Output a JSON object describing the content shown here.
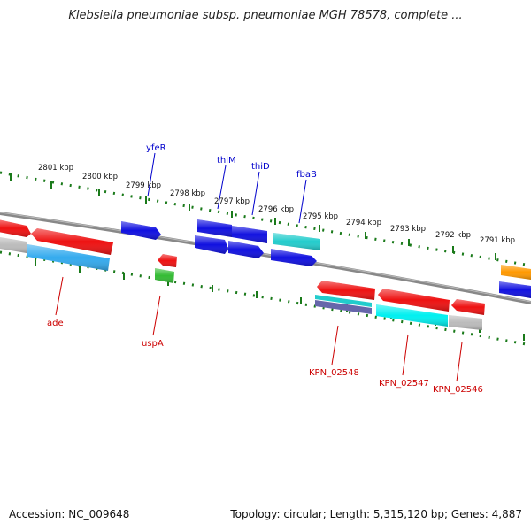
{
  "title": "Klebsiella pneumoniae subsp. pneumoniae MGH 78578, complete ...",
  "footer": {
    "accession": "Accession: NC_009648",
    "summary": "Topology: circular; Length: 5,315,120 bp; Genes: 4,887"
  },
  "ticks": [
    {
      "label": "2801 kbp"
    },
    {
      "label": "2800 kbp"
    },
    {
      "label": "2799 kbp"
    },
    {
      "label": "2798 kbp"
    },
    {
      "label": "2797 kbp"
    },
    {
      "label": "2796 kbp"
    },
    {
      "label": "2795 kbp"
    },
    {
      "label": "2794 kbp"
    },
    {
      "label": "2793 kbp"
    },
    {
      "label": "2792 kbp"
    },
    {
      "label": "2791 kbp"
    }
  ],
  "gene_labels": {
    "top": [
      {
        "name": "yfeR",
        "color": "#0000cc"
      },
      {
        "name": "thiM",
        "color": "#0000cc"
      },
      {
        "name": "thiD",
        "color": "#0000cc"
      },
      {
        "name": "fbaB",
        "color": "#0000cc"
      }
    ],
    "bottom": [
      {
        "name": "ade",
        "color": "#cc0000"
      },
      {
        "name": "uspA",
        "color": "#cc0000"
      },
      {
        "name": "KPN_02548",
        "color": "#cc0000"
      },
      {
        "name": "KPN_02547",
        "color": "#cc0000"
      },
      {
        "name": "KPN_02546",
        "color": "#cc0000"
      }
    ]
  },
  "colors": {
    "backbone": "#888888",
    "ticks": "#1a7a1a",
    "forward": "#1010e0",
    "reverse": "#ee1111",
    "cyan": "#22cccc",
    "light_blue": "#33aaee",
    "green": "#33bb33",
    "gray": "#bbbbbb",
    "orange": "#ff9900",
    "purple": "#6666aa"
  }
}
